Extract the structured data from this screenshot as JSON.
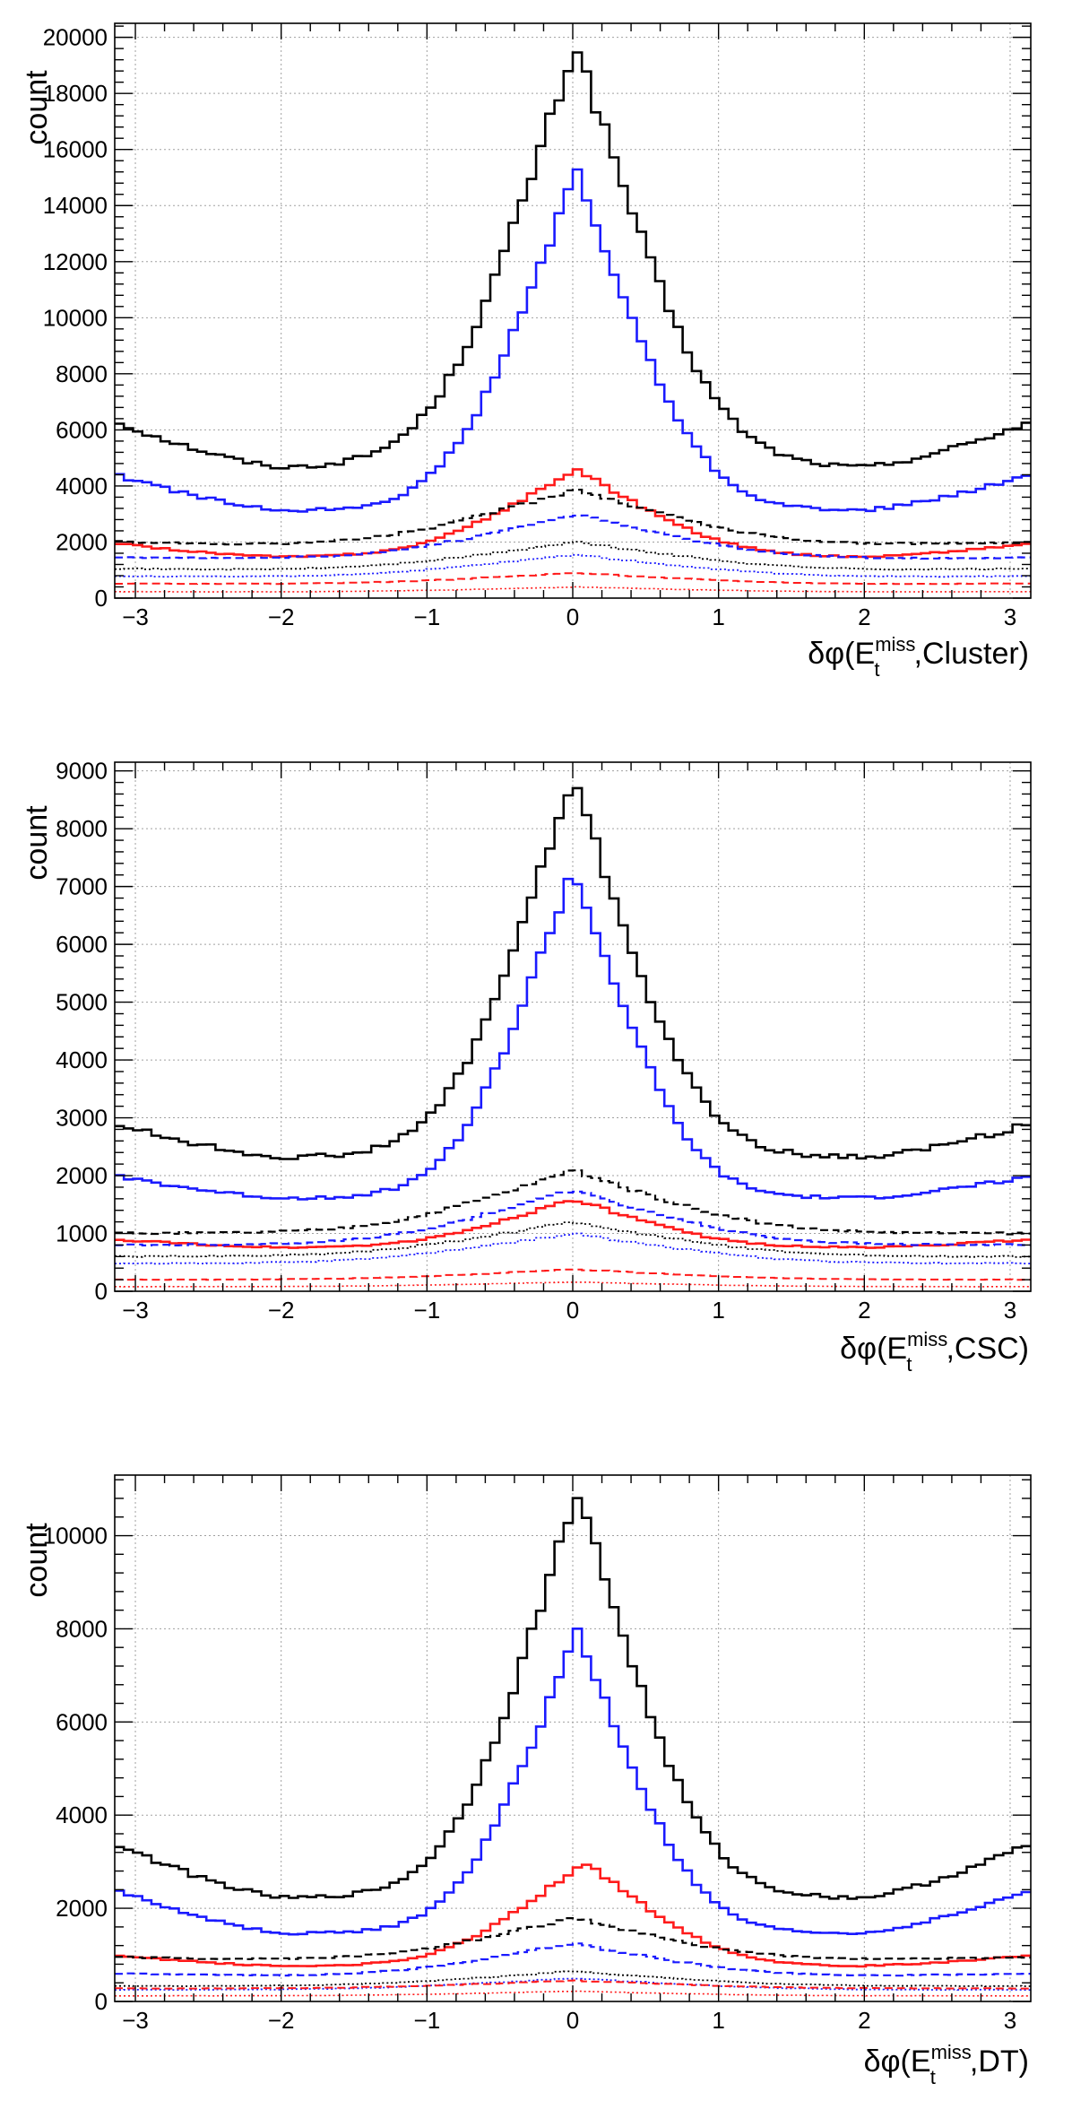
{
  "chart_data": [
    {
      "type": "line",
      "drawstyle": "steps",
      "ylabel": "count",
      "xlabel": {
        "prefix": "δφ(E",
        "sup": "miss",
        "sub": "t",
        "suffix": ",Cluster)"
      },
      "xlim": [
        -3.1416,
        3.1416
      ],
      "ylim": [
        0,
        20500
      ],
      "xticks": [
        -3,
        -2,
        -1,
        0,
        1,
        2,
        3
      ],
      "yticks": [
        0,
        2000,
        4000,
        6000,
        8000,
        10000,
        12000,
        14000,
        16000,
        18000,
        20000
      ],
      "grid": true,
      "series": [
        {
          "color": "#000000",
          "dash": "solid",
          "width": 2.6,
          "base": 4600,
          "peak": 19800,
          "center": 0.02,
          "sigma": 0.55,
          "edge": 6300
        },
        {
          "color": "#1a1aff",
          "dash": "solid",
          "width": 2.6,
          "base": 3100,
          "peak": 15200,
          "center": 0.02,
          "sigma": 0.5,
          "edge": 4400
        },
        {
          "color": "#ff1a1a",
          "dash": "solid",
          "width": 2.6,
          "base": 1450,
          "peak": 4600,
          "center": 0.02,
          "sigma": 0.6,
          "edge": 1950
        },
        {
          "color": "#000000",
          "dash": "dashed",
          "width": 2.2,
          "base": 1900,
          "peak": 3900,
          "center": 0.02,
          "sigma": 0.75,
          "edge": 2000
        },
        {
          "color": "#1a1aff",
          "dash": "dashed",
          "width": 2.2,
          "base": 1400,
          "peak": 3000,
          "center": 0.02,
          "sigma": 0.75,
          "edge": 1450
        },
        {
          "color": "#000000",
          "dash": "dotted",
          "width": 1.8,
          "base": 1000,
          "peak": 2000,
          "center": 0.02,
          "sigma": 0.8,
          "edge": 1050
        },
        {
          "color": "#1a1aff",
          "dash": "dotted",
          "width": 1.8,
          "base": 750,
          "peak": 1550,
          "center": 0.02,
          "sigma": 0.8,
          "edge": 780
        },
        {
          "color": "#ff1a1a",
          "dash": "dashed",
          "width": 2.0,
          "base": 500,
          "peak": 900,
          "center": 0.02,
          "sigma": 0.8,
          "edge": 520
        },
        {
          "color": "#ff1a1a",
          "dash": "dotted",
          "width": 1.6,
          "base": 220,
          "peak": 400,
          "center": 0.02,
          "sigma": 0.8,
          "edge": 230
        }
      ]
    },
    {
      "type": "line",
      "drawstyle": "steps",
      "ylabel": "count",
      "xlabel": {
        "prefix": "δφ(E",
        "sup": "miss",
        "sub": "t",
        "suffix": ",CSC)"
      },
      "xlim": [
        -3.1416,
        3.1416
      ],
      "ylim": [
        0,
        9150
      ],
      "xticks": [
        -3,
        -2,
        -1,
        0,
        1,
        2,
        3
      ],
      "yticks": [
        0,
        1000,
        2000,
        3000,
        4000,
        5000,
        6000,
        7000,
        8000,
        9000
      ],
      "grid": true,
      "series": [
        {
          "color": "#000000",
          "dash": "solid",
          "width": 2.6,
          "base": 2300,
          "peak": 8900,
          "center": 0.0,
          "sigma": 0.5,
          "edge": 2900
        },
        {
          "color": "#1a1aff",
          "dash": "solid",
          "width": 2.6,
          "base": 1600,
          "peak": 7300,
          "center": 0.0,
          "sigma": 0.47,
          "edge": 2000
        },
        {
          "color": "#ff1a1a",
          "dash": "solid",
          "width": 2.6,
          "base": 750,
          "peak": 1600,
          "center": 0.0,
          "sigma": 0.6,
          "edge": 900
        },
        {
          "color": "#000000",
          "dash": "dashed",
          "width": 2.2,
          "base": 1000,
          "peak": 2100,
          "center": 0.0,
          "sigma": 0.75,
          "edge": 1000
        },
        {
          "color": "#1a1aff",
          "dash": "dashed",
          "width": 2.2,
          "base": 800,
          "peak": 1750,
          "center": 0.0,
          "sigma": 0.75,
          "edge": 800
        },
        {
          "color": "#000000",
          "dash": "dotted",
          "width": 1.8,
          "base": 600,
          "peak": 1200,
          "center": 0.0,
          "sigma": 0.8,
          "edge": 600
        },
        {
          "color": "#1a1aff",
          "dash": "dotted",
          "width": 1.8,
          "base": 480,
          "peak": 1000,
          "center": 0.0,
          "sigma": 0.8,
          "edge": 480
        },
        {
          "color": "#ff1a1a",
          "dash": "dashed",
          "width": 2.0,
          "base": 200,
          "peak": 380,
          "center": 0.0,
          "sigma": 0.8,
          "edge": 200
        },
        {
          "color": "#ff1a1a",
          "dash": "dotted",
          "width": 1.6,
          "base": 80,
          "peak": 160,
          "center": 0.0,
          "sigma": 0.8,
          "edge": 80
        }
      ]
    },
    {
      "type": "line",
      "drawstyle": "steps",
      "ylabel": "count",
      "xlabel": {
        "prefix": "δφ(E",
        "sup": "miss",
        "sub": "t",
        "suffix": ",DT)"
      },
      "xlim": [
        -3.1416,
        3.1416
      ],
      "ylim": [
        0,
        11300
      ],
      "xticks": [
        -3,
        -2,
        -1,
        0,
        1,
        2,
        3
      ],
      "yticks": [
        0,
        2000,
        4000,
        6000,
        8000,
        10000
      ],
      "grid": true,
      "series": [
        {
          "color": "#000000",
          "dash": "solid",
          "width": 2.6,
          "base": 2200,
          "peak": 11000,
          "center": 0.03,
          "sigma": 0.5,
          "edge": 3400
        },
        {
          "color": "#1a1aff",
          "dash": "solid",
          "width": 2.6,
          "base": 1450,
          "peak": 7950,
          "center": 0.03,
          "sigma": 0.47,
          "edge": 2400
        },
        {
          "color": "#ff1a1a",
          "dash": "solid",
          "width": 2.6,
          "base": 750,
          "peak": 3000,
          "center": 0.08,
          "sigma": 0.55,
          "edge": 1000
        },
        {
          "color": "#000000",
          "dash": "dashed",
          "width": 2.2,
          "base": 900,
          "peak": 1800,
          "center": 0.0,
          "sigma": 0.7,
          "edge": 950
        },
        {
          "color": "#1a1aff",
          "dash": "dashed",
          "width": 2.2,
          "base": 550,
          "peak": 1250,
          "center": 0.0,
          "sigma": 0.7,
          "edge": 600
        },
        {
          "color": "#000000",
          "dash": "dotted",
          "width": 1.8,
          "base": 330,
          "peak": 650,
          "center": 0.0,
          "sigma": 0.8,
          "edge": 330
        },
        {
          "color": "#1a1aff",
          "dash": "dotted",
          "width": 1.8,
          "base": 250,
          "peak": 500,
          "center": 0.0,
          "sigma": 0.8,
          "edge": 250
        },
        {
          "color": "#ff1a1a",
          "dash": "dashed",
          "width": 2.0,
          "base": 280,
          "peak": 450,
          "center": 0.0,
          "sigma": 0.8,
          "edge": 280
        },
        {
          "color": "#ff1a1a",
          "dash": "dotted",
          "width": 1.6,
          "base": 120,
          "peak": 220,
          "center": 0.0,
          "sigma": 0.8,
          "edge": 120
        }
      ]
    }
  ]
}
